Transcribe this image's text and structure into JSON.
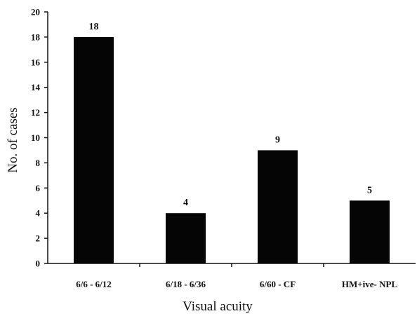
{
  "chart_data": {
    "type": "bar",
    "title": "",
    "xlabel": "Visual acuity",
    "ylabel": "No. of cases",
    "categories": [
      "6/6 - 6/12",
      "6/18 - 6/36",
      "6/60 - CF",
      "HM+ive- NPL"
    ],
    "values": [
      18,
      4,
      9,
      5
    ],
    "data_labels": [
      "18",
      "4",
      "9",
      "5"
    ],
    "ylim": [
      0,
      20
    ],
    "yticks": [
      0,
      2,
      4,
      6,
      8,
      10,
      12,
      14,
      16,
      18,
      20
    ],
    "grid": false,
    "legend": "none",
    "bar_color": "#050505"
  }
}
